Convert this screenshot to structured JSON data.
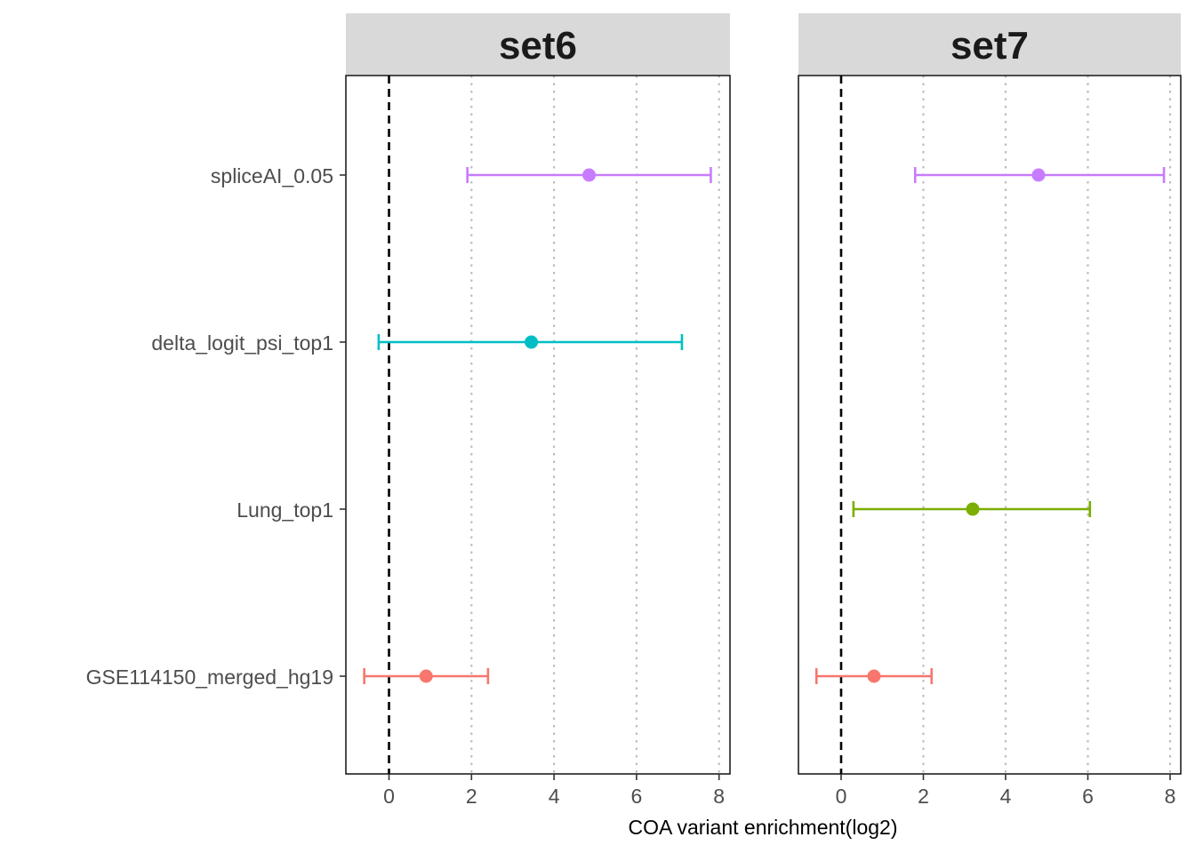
{
  "chart_data": {
    "type": "scatter",
    "subtype": "point-range (faceted)",
    "xlabel": "COA variant enrichment(log2)",
    "ylabel": "",
    "xlim": [
      -1.0,
      8.2
    ],
    "x_ticks": [
      0,
      2,
      4,
      6,
      8
    ],
    "x_tick_labels": [
      "0",
      "2",
      "4",
      "6",
      "8"
    ],
    "reference_line": {
      "x": 0,
      "style": "dashed",
      "color": "#000000"
    },
    "grid": {
      "vertical_major": "dotted",
      "horizontal": false
    },
    "categories": [
      "spliceAI_0.05",
      "delta_logit_psi_top1",
      "Lung_top1",
      "GSE114150_merged_hg19"
    ],
    "category_colors": {
      "spliceAI_0.05": "#C77CFF",
      "delta_logit_psi_top1": "#00BFC4",
      "Lung_top1": "#7CAE00",
      "GSE114150_merged_hg19": "#F8766D"
    },
    "facets": [
      {
        "title": "set6",
        "series": [
          {
            "name": "spliceAI_0.05",
            "estimate": 4.85,
            "lower": 1.9,
            "upper": 7.8
          },
          {
            "name": "delta_logit_psi_top1",
            "estimate": 3.45,
            "lower": -0.25,
            "upper": 7.1
          },
          {
            "name": "GSE114150_merged_hg19",
            "estimate": 0.9,
            "lower": -0.6,
            "upper": 2.4
          }
        ]
      },
      {
        "title": "set7",
        "series": [
          {
            "name": "spliceAI_0.05",
            "estimate": 4.8,
            "lower": 1.8,
            "upper": 7.85
          },
          {
            "name": "Lung_top1",
            "estimate": 3.2,
            "lower": 0.3,
            "upper": 6.05
          },
          {
            "name": "GSE114150_merged_hg19",
            "estimate": 0.8,
            "lower": -0.6,
            "upper": 2.2
          }
        ]
      }
    ]
  }
}
